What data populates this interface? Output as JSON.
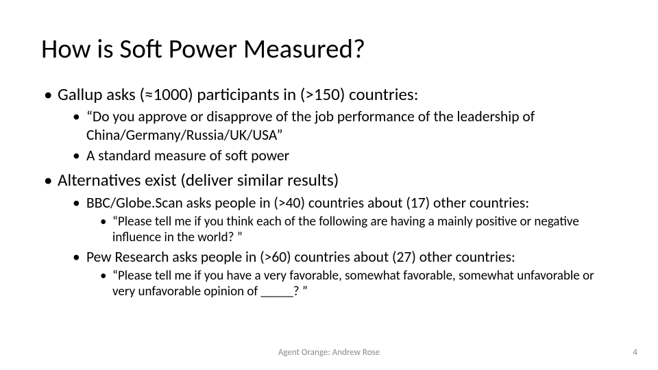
{
  "title": "How is Soft Power Measured?",
  "bullets": {
    "b1": "Gallup asks (≈1000) participants in (>150) countries:",
    "b1a": "“Do you approve or disapprove of the job performance of the leadership of China/Germany/Russia/UK/USA”",
    "b1b": "A standard measure of soft power",
    "b2": "Alternatives exist (deliver similar results)",
    "b2a": "BBC/Globe.Scan asks people in (>40) countries about (17) other countries:",
    "b2a1": "“Please tell me if you think each of the following are having a mainly positive or negative influence in the world? ”",
    "b2b": "Pew Research asks people in (>60) countries about (27) other countries:",
    "b2b1": "“Please tell me if you have a very favorable, somewhat favorable, somewhat unfavorable or very unfavorable opinion of _____? ”"
  },
  "footer": {
    "center": "Agent Orange: Andrew Rose",
    "page": "4"
  },
  "style": {
    "background_color": "#ffffff",
    "text_color": "#000000",
    "footer_color": "#8a8a8a",
    "title_fontsize_pt": 30,
    "lvl1_fontsize_pt": 19,
    "lvl2_fontsize_pt": 16,
    "lvl3_fontsize_pt": 14
  }
}
